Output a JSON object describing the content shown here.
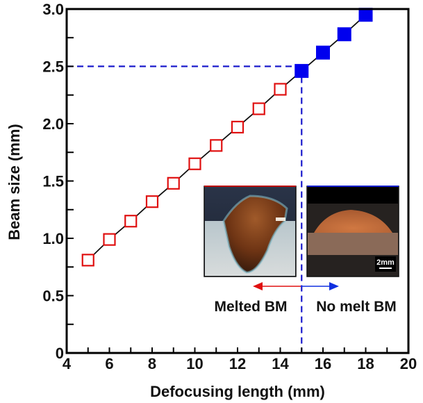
{
  "chart_data": {
    "type": "scatter",
    "title": "",
    "xlabel": "Defocusing length (mm)",
    "ylabel": "Beam size (mm)",
    "xlim": [
      4,
      20
    ],
    "ylim": [
      0,
      3.0
    ],
    "xticks": [
      4,
      6,
      8,
      10,
      12,
      14,
      16,
      18,
      20
    ],
    "xtick_labels": [
      "4",
      "6",
      "8",
      "10",
      "12",
      "14",
      "16",
      "18",
      "20"
    ],
    "yticks": [
      0,
      0.5,
      1.0,
      1.5,
      2.0,
      2.5,
      3.0
    ],
    "ytick_labels": [
      "0",
      "0.5",
      "1.0",
      "1.5",
      "2.0",
      "2.5",
      "3.0"
    ],
    "grid": false,
    "series": [
      {
        "name": "Melted BM",
        "marker": "open-square",
        "color": "#e01010",
        "x": [
          5,
          6,
          7,
          8,
          9,
          10,
          11,
          12,
          13,
          14
        ],
        "y": [
          0.81,
          0.99,
          1.15,
          1.32,
          1.48,
          1.65,
          1.81,
          1.97,
          2.13,
          2.3
        ]
      },
      {
        "name": "No melt BM",
        "marker": "filled-square",
        "color": "#0000ee",
        "x": [
          15,
          16,
          17,
          18
        ],
        "y": [
          2.46,
          2.62,
          2.78,
          2.95
        ]
      }
    ],
    "reference_lines": {
      "x": 15,
      "y": 2.5,
      "color": "#1a1acc",
      "style": "dashed"
    },
    "annotations": {
      "left_label": "Melted BM",
      "right_label": "No melt BM",
      "scale_bar": "2mm",
      "left_arrow_color": "#e01010",
      "right_arrow_color": "#1030e0"
    }
  }
}
